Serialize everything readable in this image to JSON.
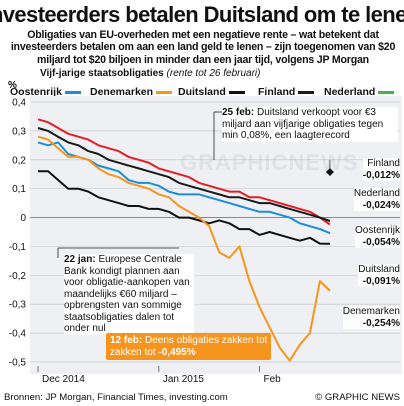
{
  "headline": "Investeerders betalen Duitsland om te lenen",
  "subheadline": "Obligaties van EU-overheden met een negatieve rente – wat betekent dat investeerders betalen om aan een land geld te lenen – zijn toegenomen van $20 miljard tot $20 biljoen in minder dan een jaar tijd, volgens JP Morgan",
  "chart_title": "Vijf-jarige staatsobligaties",
  "chart_title_note": "(rente tot 26 februari)",
  "unit": "%",
  "annotations": {
    "feb25": {
      "date": "25 feb:",
      "text": "Duitsland verkoopt voor €3 miljard aan vijfjarige obligaties tegen min 0,08%, een laagterecord"
    },
    "jan22": {
      "date": "22 jan:",
      "text": "Europese Centrale Bank kondigt plannen aan voor obligatie-aankopen van maandelijks €60 miljard – opbrengsten van sommige staatsobligaties dalen tot onder nul"
    },
    "feb12": {
      "date": "12 feb:",
      "text": "Deens obligaties zakken tot",
      "value": "-0,495%"
    }
  },
  "end_labels": [
    {
      "name": "Finland",
      "value": "-0,012%"
    },
    {
      "name": "Nederland",
      "value": "-0,024%"
    },
    {
      "name": "Oostenrijk",
      "value": "-0,054%"
    },
    {
      "name": "Duitsland",
      "value": "-0,091%"
    },
    {
      "name": "Denemarken",
      "value": "-0,254%"
    }
  ],
  "footer": {
    "sources": "Bronnen: JP Morgan, Financial Times, investing.com",
    "credit": "© GRAPHIC NEWS"
  },
  "watermark": "GRAPHICNEWS",
  "chart_data": {
    "type": "line",
    "title": "Vijf-jarige staatsobligaties",
    "ylabel": "%",
    "ylim": [
      -0.5,
      0.45
    ],
    "yticks": [
      0.4,
      0.3,
      0.2,
      0.1,
      0,
      -0.1,
      -0.2,
      -0.3,
      -0.4,
      -0.5
    ],
    "ytick_labels": [
      "0,4",
      "0,3",
      "0,2",
      "0,1",
      "0",
      "-0,1",
      "-0,2",
      "-0,3",
      "-0,4",
      "-0,5"
    ],
    "x_labels": [
      "Dec 2014",
      "Jan 2015",
      "Feb"
    ],
    "legend": "top",
    "grid": true,
    "series": [
      {
        "name": "Oostenrijk",
        "color": "#1a8fd6",
        "x": [
          0,
          3,
          6,
          9,
          12,
          15,
          18,
          21,
          24,
          27,
          30,
          33,
          36,
          39,
          42,
          45,
          48,
          51,
          54,
          57,
          60,
          63,
          66,
          69,
          72,
          75,
          78,
          81,
          84,
          87
        ],
        "values": [
          0.26,
          0.25,
          0.26,
          0.22,
          0.21,
          0.2,
          0.18,
          0.17,
          0.16,
          0.13,
          0.12,
          0.12,
          0.11,
          0.09,
          0.08,
          0.08,
          0.08,
          0.07,
          0.06,
          0.05,
          0.04,
          0.03,
          0.02,
          0.02,
          0.01,
          0.0,
          -0.02,
          -0.03,
          -0.04,
          -0.054
        ]
      },
      {
        "name": "Denemarken",
        "color": "#f7941d",
        "x": [
          0,
          3,
          6,
          9,
          12,
          15,
          18,
          21,
          24,
          27,
          30,
          33,
          36,
          39,
          42,
          45,
          48,
          51,
          54,
          57,
          60,
          63,
          66,
          69,
          72,
          75,
          78,
          81,
          84,
          87
        ],
        "values": [
          0.28,
          0.27,
          0.24,
          0.21,
          0.21,
          0.2,
          0.17,
          0.15,
          0.14,
          0.12,
          0.11,
          0.1,
          0.08,
          0.07,
          0.04,
          0.02,
          0.0,
          -0.03,
          -0.12,
          -0.14,
          -0.1,
          -0.22,
          -0.31,
          -0.38,
          -0.45,
          -0.495,
          -0.44,
          -0.4,
          -0.22,
          -0.254
        ]
      },
      {
        "name": "Duitsland",
        "color": "#111111",
        "x": [
          0,
          3,
          6,
          9,
          12,
          15,
          18,
          21,
          24,
          27,
          30,
          33,
          36,
          39,
          42,
          45,
          48,
          51,
          54,
          57,
          60,
          63,
          66,
          69,
          72,
          75,
          78,
          81,
          84,
          87
        ],
        "values": [
          0.16,
          0.16,
          0.13,
          0.1,
          0.1,
          0.09,
          0.07,
          0.06,
          0.05,
          0.04,
          0.04,
          0.03,
          0.03,
          0.02,
          0.0,
          0.0,
          -0.01,
          -0.02,
          -0.01,
          -0.02,
          -0.04,
          -0.04,
          -0.06,
          -0.05,
          -0.06,
          -0.07,
          -0.08,
          -0.07,
          -0.09,
          -0.091
        ]
      },
      {
        "name": "Finland",
        "color": "#1a1a1a",
        "x": [
          0,
          3,
          6,
          9,
          12,
          15,
          18,
          21,
          24,
          27,
          30,
          33,
          36,
          39,
          42,
          45,
          48,
          51,
          54,
          57,
          60,
          63,
          66,
          69,
          72,
          75,
          78,
          81,
          84,
          87
        ],
        "values": [
          0.31,
          0.3,
          0.28,
          0.26,
          0.25,
          0.23,
          0.22,
          0.2,
          0.19,
          0.18,
          0.17,
          0.16,
          0.15,
          0.14,
          0.12,
          0.11,
          0.1,
          0.09,
          0.08,
          0.07,
          0.07,
          0.06,
          0.05,
          0.05,
          0.04,
          0.03,
          0.02,
          0.01,
          0.0,
          -0.012
        ]
      },
      {
        "name": "Nederland",
        "color": "#e31e24",
        "x": [
          0,
          3,
          6,
          9,
          12,
          15,
          18,
          21,
          24,
          27,
          30,
          33,
          36,
          39,
          42,
          45,
          48,
          51,
          54,
          57,
          60,
          63,
          66,
          69,
          72,
          75,
          78,
          81,
          84,
          87
        ],
        "values": [
          0.34,
          0.33,
          0.31,
          0.29,
          0.28,
          0.27,
          0.25,
          0.24,
          0.23,
          0.21,
          0.2,
          0.19,
          0.17,
          0.16,
          0.15,
          0.14,
          0.12,
          0.11,
          0.1,
          0.09,
          0.09,
          0.07,
          0.07,
          0.06,
          0.05,
          0.04,
          0.03,
          0.02,
          0.0,
          -0.024
        ]
      }
    ]
  }
}
